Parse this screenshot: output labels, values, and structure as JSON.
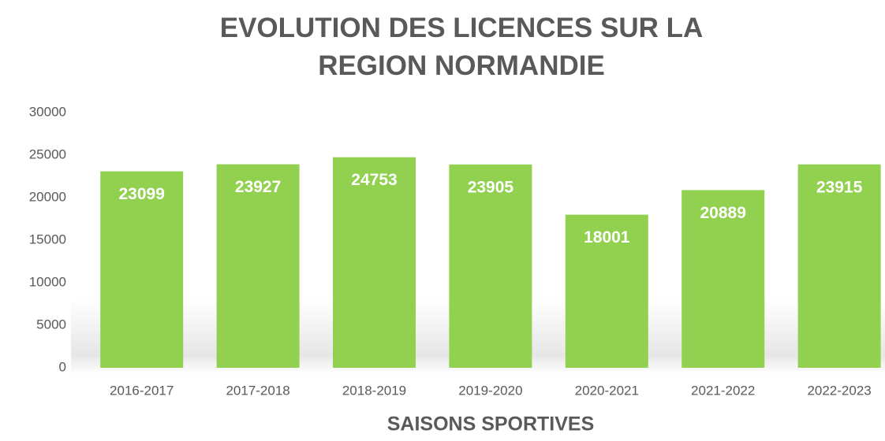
{
  "chart_data": {
    "type": "bar",
    "title": "EVOLUTION DES LICENCES SUR LA REGION NORMANDIE",
    "x_label": "SAISONS SPORTIVES",
    "categories": [
      "2016-2017",
      "2017-2018",
      "2018-2019",
      "2019-2020",
      "2020-2021",
      "2021-2022",
      "2022-2023"
    ],
    "values": [
      23099,
      23927,
      24753,
      23905,
      18001,
      20889,
      23915
    ],
    "color": "#92d050",
    "ylim": [
      0,
      30000
    ],
    "yticks": [
      0,
      5000,
      10000,
      15000,
      20000,
      25000,
      30000
    ],
    "grid": false
  }
}
